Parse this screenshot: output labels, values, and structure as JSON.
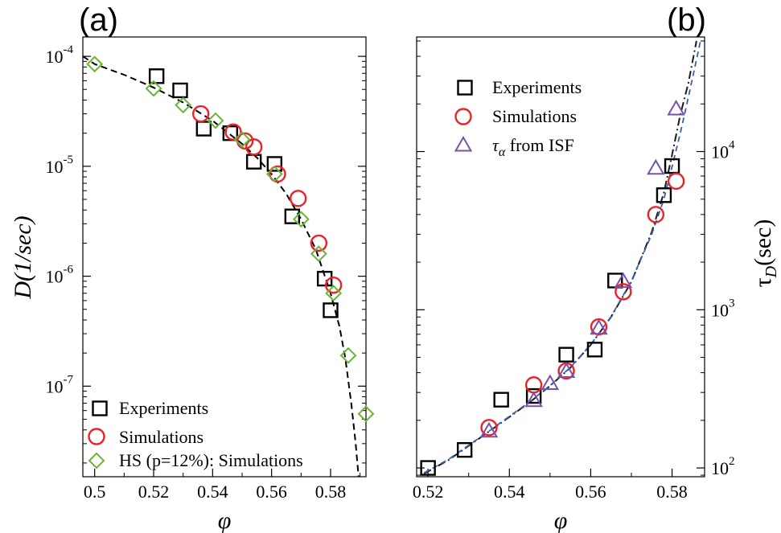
{
  "colors": {
    "experiments": "#000000",
    "simulations": "#e8232a",
    "hs": "#6ab535",
    "tau_alpha": "#7a52a5",
    "fit_dashed": "#000000",
    "fit_dashdot": "#1a1a1a",
    "fit_blue": "#3a5fb0"
  },
  "chart_data": [
    {
      "panel": "(a)",
      "type": "scatter",
      "xlabel": "φ",
      "ylabel": "D(1/sec)",
      "xlim": [
        0.496,
        0.592
      ],
      "ylim": [
        1.5e-08,
        0.00015
      ],
      "yscale": "log",
      "grid": false,
      "legend_position": "bottom-left",
      "x_ticks": [
        "0.5",
        "0.52",
        "0.54",
        "0.56",
        "0.58"
      ],
      "y_tick_mantissa": "10",
      "y_tick_exponents": [
        "-4",
        "-5",
        "-6",
        "-7"
      ],
      "series": [
        {
          "name": "Experiments",
          "marker": "square",
          "x": [
            0.521,
            0.529,
            0.537,
            0.546,
            0.554,
            0.561,
            0.567,
            0.578,
            0.58
          ],
          "y": [
            6.6e-05,
            4.9e-05,
            2.2e-05,
            2e-05,
            1.1e-05,
            1.05e-05,
            3.5e-06,
            9.5e-07,
            4.9e-07
          ]
        },
        {
          "name": "Simulations",
          "marker": "circle",
          "x": [
            0.536,
            0.547,
            0.551,
            0.554,
            0.562,
            0.569,
            0.576,
            0.581
          ],
          "y": [
            3e-05,
            2.05e-05,
            1.7e-05,
            1.5e-05,
            8.5e-06,
            5.1e-06,
            2e-06,
            8.3e-07
          ]
        },
        {
          "name": "HS (p=12%): Simulations",
          "marker": "diamond",
          "x": [
            0.5,
            0.52,
            0.53,
            0.541,
            0.55,
            0.561,
            0.57,
            0.576,
            0.581,
            0.586,
            0.592
          ],
          "y": [
            8.5e-05,
            5.1e-05,
            3.6e-05,
            2.6e-05,
            1.75e-05,
            8.5e-06,
            3.3e-06,
            1.6e-06,
            7e-07,
            1.9e-07,
            5.6e-08
          ]
        }
      ],
      "fit": {
        "style": "dashed",
        "x": [
          0.496,
          0.5,
          0.51,
          0.52,
          0.53,
          0.54,
          0.55,
          0.555,
          0.56,
          0.565,
          0.57,
          0.575,
          0.58,
          0.583,
          0.585,
          0.587,
          0.5885,
          0.5895
        ],
        "y": [
          0.0001,
          8.5e-05,
          6.8e-05,
          5.2e-05,
          3.8e-05,
          2.6e-05,
          1.6e-05,
          1.2e-05,
          8.5e-06,
          5.6e-06,
          3.3e-06,
          1.75e-06,
          7e-07,
          3.5e-07,
          1.8e-07,
          7e-08,
          3e-08,
          1.5e-08
        ]
      }
    },
    {
      "panel": "(b)",
      "type": "scatter",
      "xlabel": "φ",
      "ylabel": "τD(sec)",
      "xlim": [
        0.5172,
        0.588
      ],
      "ylim": [
        88,
        53000
      ],
      "yscale": "log",
      "grid": false,
      "legend_position": "top-left",
      "x_ticks": [
        "0.52",
        "0.54",
        "0.56",
        "0.58"
      ],
      "y_tick_mantissa": "10",
      "y_tick_exponents": [
        "2",
        "3",
        "4"
      ],
      "series": [
        {
          "name": "Experiments",
          "marker": "square",
          "x": [
            0.52,
            0.529,
            0.538,
            0.546,
            0.554,
            0.561,
            0.566,
            0.578,
            0.58
          ],
          "y": [
            100,
            130,
            270,
            285,
            520,
            560,
            1530,
            5300,
            8100
          ]
        },
        {
          "name": "Simulations",
          "marker": "circle",
          "x": [
            0.535,
            0.546,
            0.554,
            0.562,
            0.568,
            0.576,
            0.581
          ],
          "y": [
            180,
            335,
            410,
            780,
            1300,
            4000,
            6500
          ]
        },
        {
          "name": "τα from ISF",
          "marker": "triangle",
          "x": [
            0.535,
            0.546,
            0.55,
            0.554,
            0.562,
            0.568,
            0.576,
            0.581
          ],
          "y": [
            170,
            265,
            340,
            405,
            760,
            1500,
            7800,
            18500
          ]
        }
      ],
      "fits": [
        {
          "style": "dashdot",
          "x": [
            0.519,
            0.525,
            0.53,
            0.535,
            0.54,
            0.545,
            0.55,
            0.555,
            0.56,
            0.565,
            0.57,
            0.575,
            0.578,
            0.58,
            0.582,
            0.584,
            0.586
          ],
          "y": [
            92,
            112,
            138,
            170,
            210,
            260,
            330,
            430,
            600,
            900,
            1500,
            3100,
            5500,
            9500,
            17000,
            27000,
            50000
          ]
        },
        {
          "style": "dashed-blue",
          "x": [
            0.519,
            0.525,
            0.53,
            0.535,
            0.54,
            0.545,
            0.55,
            0.555,
            0.56,
            0.565,
            0.57,
            0.575,
            0.578,
            0.58,
            0.582,
            0.584,
            0.587
          ],
          "y": [
            93,
            113,
            139,
            171,
            212,
            262,
            332,
            432,
            602,
            905,
            1520,
            3000,
            5000,
            8000,
            13000,
            22000,
            50000
          ]
        }
      ]
    }
  ]
}
